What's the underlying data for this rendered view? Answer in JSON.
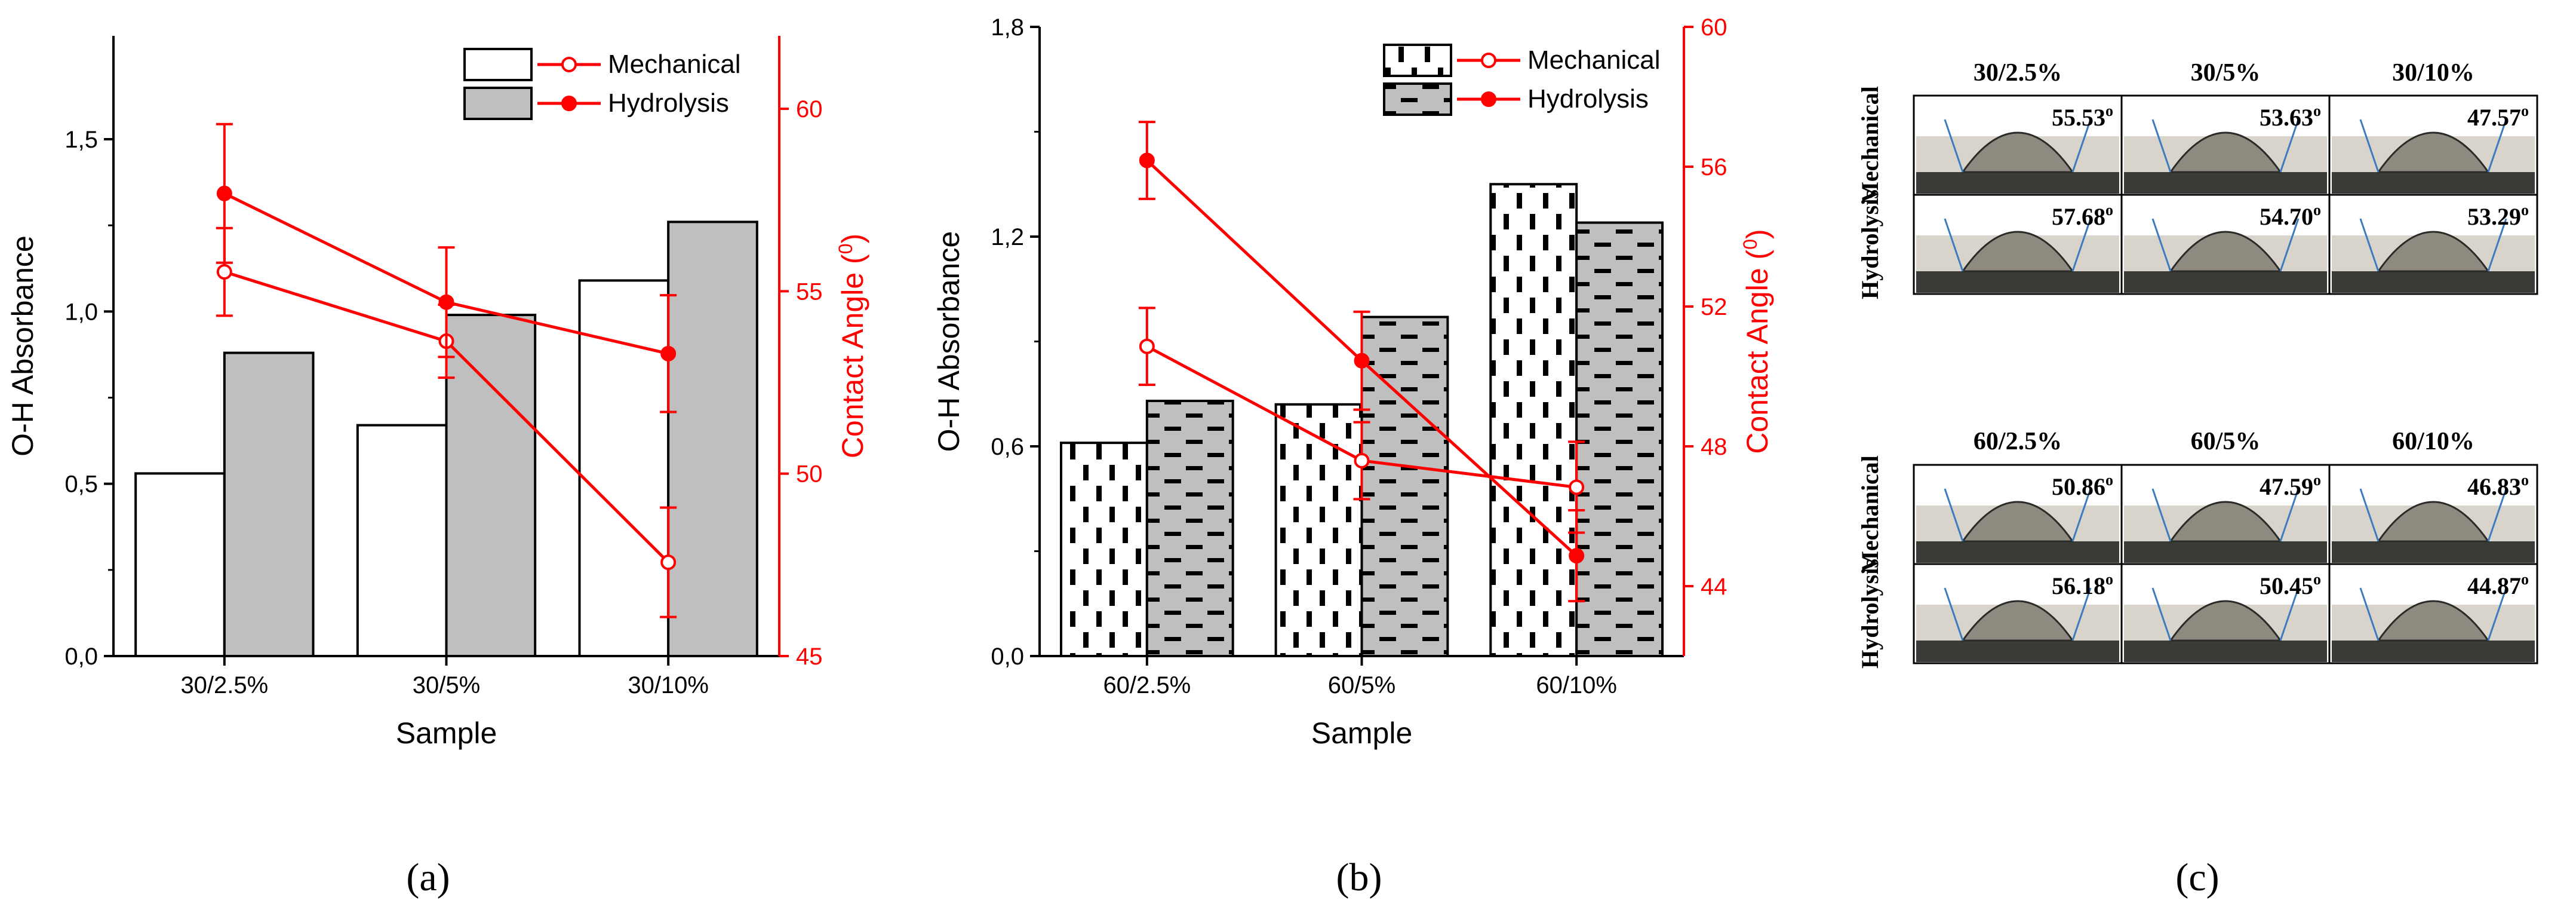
{
  "colors": {
    "axis": "#000000",
    "secondary_axis": "#ff0000",
    "mechanical_bar": "#ffffff",
    "hydrolysis_bar": "#bfbfbf",
    "line": "#ff0000",
    "droplet_bg": "#d8d4cb",
    "droplet_base": "#3a3a36",
    "droplet": "#8e8a80",
    "tangent": "#3b7bbf"
  },
  "panel_labels": {
    "a": "(a)",
    "b": "(b)",
    "c": "(c)"
  },
  "chart_data": [
    {
      "id": "a",
      "type": "bar+line",
      "xlabel": "Sample",
      "ylabel": "O-H Absorbance",
      "y2label_prefix": "Contact Angle (",
      "y2label_sup": "0",
      "y2label_suffix": ")",
      "categories": [
        "30/2.5%",
        "30/5%",
        "30/10%"
      ],
      "ylim": [
        0,
        1.8
      ],
      "yticks": [
        0,
        0.5,
        1.0,
        1.5
      ],
      "ytick_labels": [
        "0,0",
        "0,5",
        "1,0",
        "1,5"
      ],
      "y2lim": [
        45,
        62
      ],
      "y2ticks": [
        45,
        50,
        55,
        60
      ],
      "y2tick_labels": [
        "45",
        "50",
        "55",
        "60"
      ],
      "bar_style": "plain",
      "bars": [
        {
          "name": "Mechanical",
          "values": [
            0.53,
            0.67,
            1.09
          ]
        },
        {
          "name": "Hydrolysis",
          "values": [
            0.88,
            0.99,
            1.26
          ]
        }
      ],
      "lines": [
        {
          "name": "Mechanical",
          "marker": "open",
          "values": [
            55.53,
            53.63,
            47.57
          ],
          "errors": [
            1.2,
            1.0,
            1.5
          ]
        },
        {
          "name": "Hydrolysis",
          "marker": "filled",
          "values": [
            57.68,
            54.7,
            53.29
          ],
          "errors": [
            1.9,
            1.5,
            1.6
          ]
        }
      ],
      "legend": {
        "placement": "top-right",
        "entries": [
          "Mechanical",
          "Hydrolysis"
        ]
      }
    },
    {
      "id": "b",
      "type": "bar+line",
      "xlabel": "Sample",
      "ylabel": "O-H Absorbance",
      "y2label_prefix": "Contact Angle (",
      "y2label_sup": "0",
      "y2label_suffix": ")",
      "categories": [
        "60/2.5%",
        "60/5%",
        "60/10%"
      ],
      "ylim": [
        0,
        1.8
      ],
      "yticks": [
        0,
        0.6,
        1.2,
        1.8
      ],
      "ytick_labels": [
        "0,0",
        "0,6",
        "1,2",
        "1,8"
      ],
      "y2lim": [
        42,
        60
      ],
      "y2ticks": [
        44,
        48,
        52,
        56,
        60
      ],
      "y2tick_labels": [
        "44",
        "48",
        "52",
        "56",
        "60"
      ],
      "bar_style": "dashed",
      "bars": [
        {
          "name": "Mechanical",
          "values": [
            0.61,
            0.72,
            1.35
          ]
        },
        {
          "name": "Hydrolysis",
          "values": [
            0.73,
            0.97,
            1.24
          ]
        }
      ],
      "lines": [
        {
          "name": "Mechanical",
          "marker": "open",
          "values": [
            50.86,
            47.59,
            46.83
          ],
          "errors": [
            1.1,
            1.1,
            1.3
          ]
        },
        {
          "name": "Hydrolysis",
          "marker": "filled",
          "values": [
            56.18,
            50.45,
            44.87
          ],
          "errors": [
            1.1,
            1.4,
            1.3
          ]
        }
      ],
      "legend": {
        "placement": "top-right",
        "entries": [
          "Mechanical",
          "Hydrolysis"
        ]
      }
    }
  ],
  "droplets": {
    "row_labels": [
      "Mechanical",
      "Hydrolysis"
    ],
    "groups": [
      {
        "columns": [
          "30/2.5%",
          "30/5%",
          "30/10%"
        ],
        "rows": [
          {
            "label": "Mechanical",
            "angles": [
              "55.53",
              "53.63",
              "47.57"
            ]
          },
          {
            "label": "Hydrolysis",
            "angles": [
              "57.68",
              "54.70",
              "53.29"
            ]
          }
        ]
      },
      {
        "columns": [
          "60/2.5%",
          "60/5%",
          "60/10%"
        ],
        "rows": [
          {
            "label": "Mechanical",
            "angles": [
              "50.86",
              "47.59",
              "46.83"
            ]
          },
          {
            "label": "Hydrolysis",
            "angles": [
              "56.18",
              "50.45",
              "44.87"
            ]
          }
        ]
      }
    ],
    "degree_symbol": "o"
  }
}
